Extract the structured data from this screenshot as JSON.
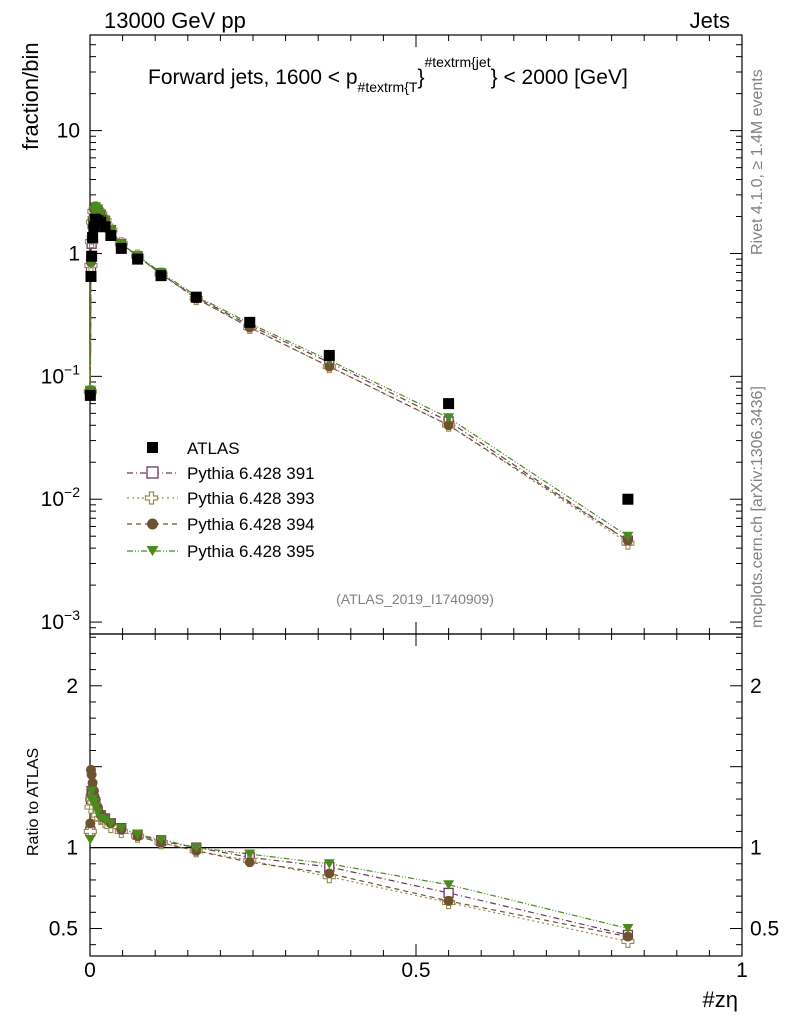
{
  "header": {
    "left": "13000 GeV pp",
    "right": "Jets"
  },
  "side_labels": {
    "rivet": "Rivet 4.1.0, ≥ 1.4M events",
    "mcplots": "mcplots.cern.ch [arXiv:1306.3436]"
  },
  "chart_data": [
    {
      "type": "scatter",
      "panel": "main",
      "title_parts": {
        "prefix": "Forward jets, 1600 < p",
        "sub": "#textrm{T",
        "brace": "}",
        "sup": "#textrm{jet",
        "suffix": "} < 2000 [GeV]"
      },
      "ylabel": "fraction/bin",
      "yscale": "log",
      "ylim": [
        0.0008,
        60
      ],
      "xlim": [
        0,
        1
      ],
      "ytick_labels": [
        {
          "value": 10,
          "base": "10",
          "exp": ""
        },
        {
          "value": 1,
          "base": "1",
          "exp": ""
        },
        {
          "value": 0.1,
          "base": "10",
          "exp": "−1"
        },
        {
          "value": 0.01,
          "base": "10",
          "exp": "−2"
        },
        {
          "value": 0.001,
          "base": "10",
          "exp": "−3"
        }
      ],
      "watermark": "(ATLAS_2019_I1740909)",
      "legend_position": "center-left",
      "x": [
        0.0005,
        0.0015,
        0.0025,
        0.004,
        0.006,
        0.0085,
        0.012,
        0.0165,
        0.023,
        0.032,
        0.048,
        0.073,
        0.109,
        0.163,
        0.245,
        0.367,
        0.55,
        0.825
      ],
      "series": [
        {
          "name": "ATLAS",
          "marker": "square-filled",
          "color": "#000000",
          "line": "none",
          "values": [
            0.07,
            0.65,
            0.95,
            1.35,
            1.65,
            1.9,
            1.85,
            1.8,
            1.65,
            1.4,
            1.1,
            0.9,
            0.66,
            0.44,
            0.275,
            0.148,
            0.06,
            0.01
          ]
        },
        {
          "name": "Pythia 6.428 391",
          "marker": "square-open",
          "color": "#6b3a5e",
          "line": "dashdot",
          "values": [
            0.075,
            0.75,
            1.2,
            1.75,
            2.15,
            2.3,
            2.2,
            2.05,
            1.85,
            1.55,
            1.2,
            0.95,
            0.68,
            0.44,
            0.26,
            0.13,
            0.043,
            0.0046
          ]
        },
        {
          "name": "Pythia 6.428 393",
          "marker": "cross-open",
          "color": "#9a8a50",
          "line": "dotted",
          "values": [
            0.075,
            0.8,
            1.25,
            1.8,
            2.2,
            2.35,
            2.25,
            2.1,
            1.85,
            1.55,
            1.2,
            0.95,
            0.68,
            0.43,
            0.25,
            0.12,
            0.04,
            0.0044
          ]
        },
        {
          "name": "Pythia 6.428 394",
          "marker": "circle-filled",
          "color": "#6e5232",
          "line": "dashed",
          "values": [
            0.075,
            0.85,
            1.3,
            1.9,
            2.3,
            2.4,
            2.3,
            2.1,
            1.9,
            1.55,
            1.2,
            0.95,
            0.68,
            0.43,
            0.25,
            0.12,
            0.04,
            0.0046
          ]
        },
        {
          "name": "Pythia 6.428 395",
          "marker": "triangle-down-filled",
          "color": "#4d8a1e",
          "line": "dashdotdot",
          "values": [
            0.077,
            0.82,
            1.28,
            1.85,
            2.25,
            2.4,
            2.3,
            2.1,
            1.85,
            1.55,
            1.2,
            0.96,
            0.7,
            0.45,
            0.27,
            0.135,
            0.046,
            0.005
          ]
        }
      ]
    },
    {
      "type": "scatter",
      "panel": "ratio",
      "ylabel": "Ratio to ATLAS",
      "ylim": [
        0.33,
        2.32
      ],
      "xlim": [
        0,
        1
      ],
      "xlabel": "#zη",
      "reference_line": 1,
      "ytick_labels": [
        "0.5",
        "1",
        "2"
      ],
      "ytick_values": [
        0.5,
        1,
        2
      ],
      "xtick_labels": [
        "0",
        "0.5",
        "1"
      ],
      "xtick_values": [
        0,
        0.5,
        1
      ],
      "x": [
        0.0005,
        0.0015,
        0.0025,
        0.004,
        0.006,
        0.0085,
        0.012,
        0.0165,
        0.023,
        0.032,
        0.048,
        0.073,
        0.109,
        0.163,
        0.245,
        0.367,
        0.55,
        0.825
      ],
      "series": [
        {
          "name": "Pythia 6.428 391",
          "color": "#6b3a5e",
          "marker": "square-open",
          "line": "dashdot",
          "values": [
            1.1,
            1.3,
            1.35,
            1.33,
            1.3,
            1.27,
            1.22,
            1.2,
            1.18,
            1.15,
            1.12,
            1.08,
            1.04,
            1.0,
            0.94,
            0.88,
            0.72,
            0.46
          ]
        },
        {
          "name": "Pythia 6.428 393",
          "color": "#9a8a50",
          "marker": "cross-open",
          "line": "dotted",
          "values": [
            1.1,
            1.25,
            1.3,
            1.3,
            1.28,
            1.25,
            1.2,
            1.18,
            1.16,
            1.13,
            1.1,
            1.07,
            1.03,
            0.98,
            0.92,
            0.82,
            0.66,
            0.42
          ]
        },
        {
          "name": "Pythia 6.428 394",
          "color": "#6e5232",
          "marker": "circle-filled",
          "line": "dashed",
          "values": [
            1.15,
            1.48,
            1.45,
            1.4,
            1.35,
            1.3,
            1.25,
            1.2,
            1.18,
            1.15,
            1.11,
            1.07,
            1.03,
            0.98,
            0.91,
            0.84,
            0.67,
            0.45
          ]
        },
        {
          "name": "Pythia 6.428 395",
          "color": "#4d8a1e",
          "marker": "triangle-down-filled",
          "line": "dashdotdot",
          "values": [
            1.05,
            1.3,
            1.35,
            1.3,
            1.28,
            1.25,
            1.22,
            1.18,
            1.17,
            1.15,
            1.12,
            1.08,
            1.05,
            1.0,
            0.96,
            0.9,
            0.77,
            0.5
          ]
        }
      ]
    }
  ]
}
